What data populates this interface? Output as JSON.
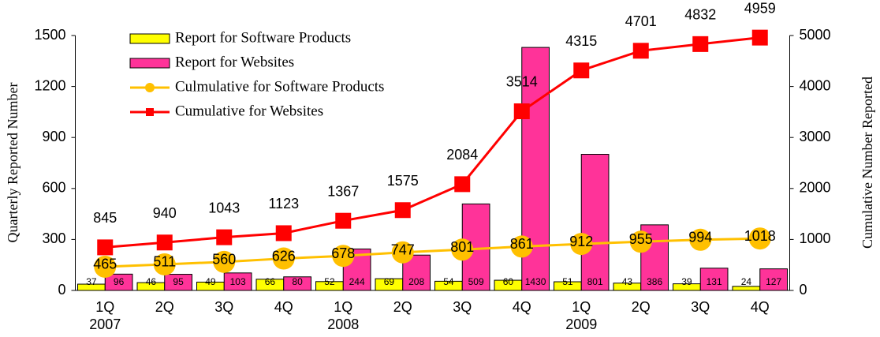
{
  "chart_data": {
    "type": "bar",
    "categories": [
      "1Q",
      "2Q",
      "3Q",
      "4Q",
      "1Q",
      "2Q",
      "3Q",
      "4Q",
      "1Q",
      "2Q",
      "3Q",
      "4Q"
    ],
    "x_group_labels": [
      "2007",
      null,
      null,
      null,
      "2008",
      null,
      null,
      null,
      "2009",
      null,
      null,
      null
    ],
    "ylabel": "Quarterly Reported Number",
    "y2label": "Cumulative Number Reported",
    "ylim": [
      0,
      1500
    ],
    "yticks": [
      0,
      300,
      600,
      900,
      1200,
      1500
    ],
    "y2lim": [
      0,
      5000
    ],
    "y2ticks": [
      0,
      1000,
      2000,
      3000,
      4000,
      5000
    ],
    "grid": false,
    "legend": "upper left",
    "series": [
      {
        "name": "Report for Software Products",
        "type": "bar",
        "color": "#ffff00",
        "values": [
          37,
          46,
          49,
          66,
          52,
          69,
          54,
          60,
          51,
          43,
          39,
          24
        ]
      },
      {
        "name": "Report for Websites",
        "type": "bar",
        "color": "#ff3399",
        "values": [
          96,
          95,
          103,
          80,
          244,
          208,
          509,
          1430,
          801,
          386,
          131,
          127
        ]
      },
      {
        "name": "Culmulative for Software Products",
        "type": "line",
        "axis": "y2",
        "color": "#ffc000",
        "marker": "circle",
        "values": [
          465,
          511,
          560,
          626,
          678,
          747,
          801,
          861,
          912,
          955,
          994,
          1018
        ]
      },
      {
        "name": "Cumulative for Websites",
        "type": "line",
        "axis": "y2",
        "color": "#ff0000",
        "marker": "square",
        "values": [
          845,
          940,
          1043,
          1123,
          1367,
          1575,
          2084,
          3514,
          4315,
          4701,
          4832,
          4959
        ]
      }
    ]
  }
}
